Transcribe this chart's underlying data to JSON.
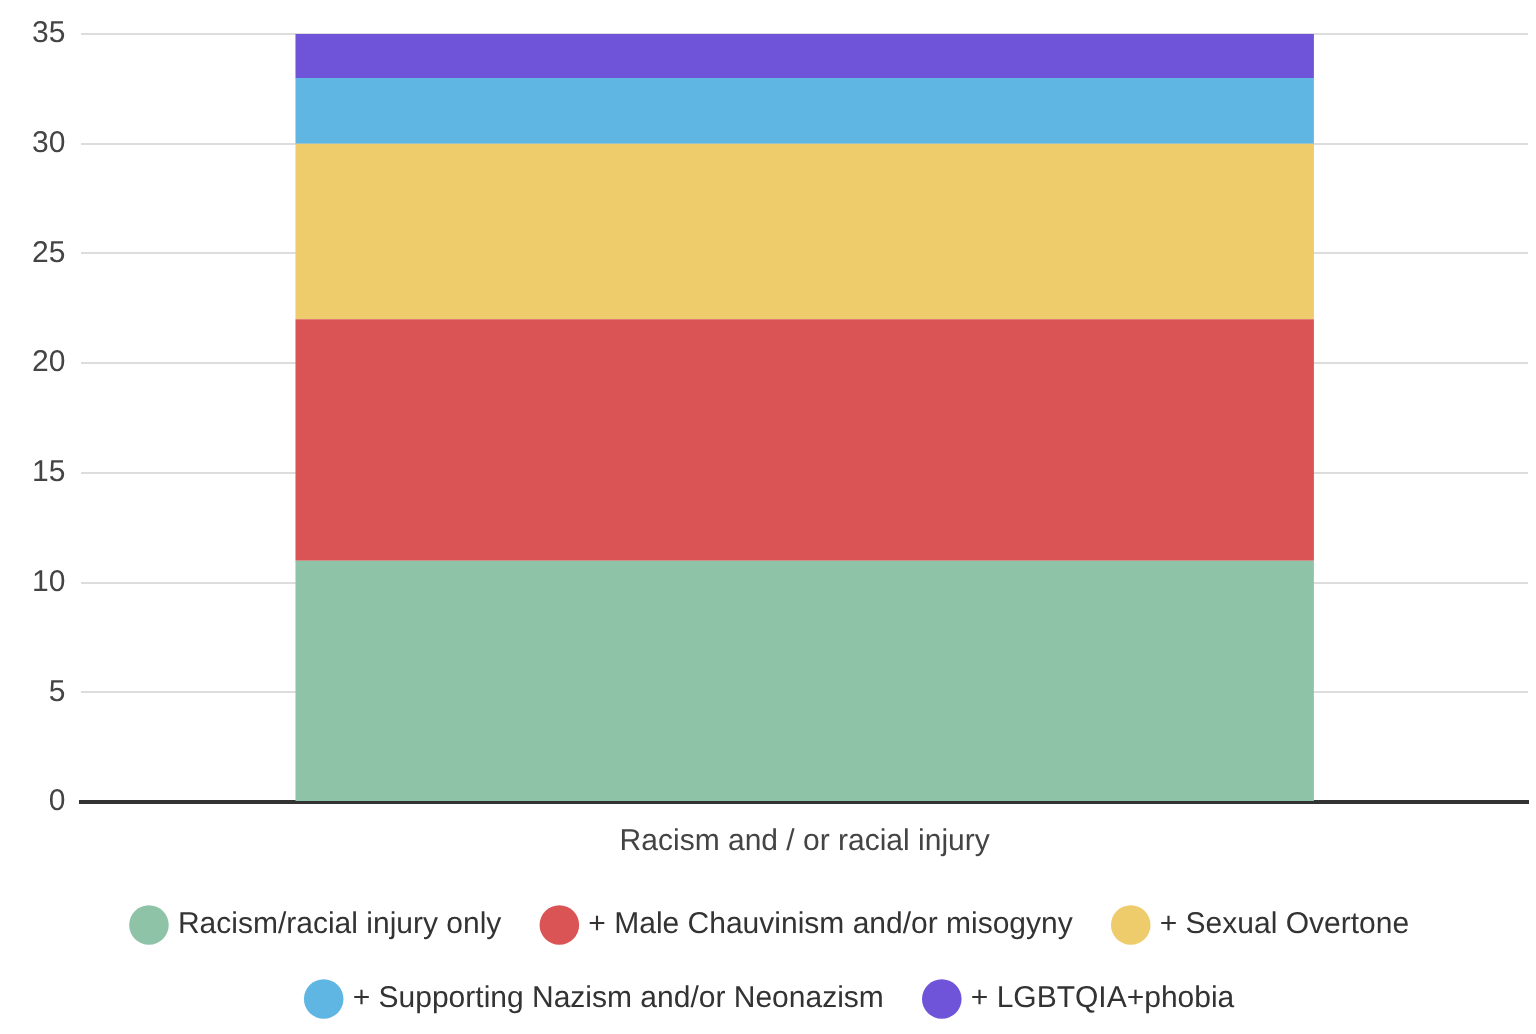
{
  "chart_data": {
    "type": "bar",
    "stacked": true,
    "categories": [
      "Racism and / or racial injury"
    ],
    "series": [
      {
        "name": "Racism/racial injury only",
        "color": "#8fc3a8",
        "values": [
          11
        ]
      },
      {
        "name": "+ Male Chauvinism and/or misogyny",
        "color": "#db5455",
        "values": [
          11
        ]
      },
      {
        "name": "+ Sexual Overtone",
        "color": "#eecb6b",
        "values": [
          8
        ]
      },
      {
        "name": "+ Supporting Nazism and/or Neonazism",
        "color": "#60b6e3",
        "values": [
          3
        ]
      },
      {
        "name": "+ LGBTQIA+phobia",
        "color": "#6f53d9",
        "values": [
          2
        ]
      }
    ],
    "ylim": [
      0,
      35
    ],
    "yticks": [
      0,
      5,
      10,
      15,
      20,
      25,
      30,
      35
    ],
    "grid": "y",
    "legend": "bottom"
  }
}
